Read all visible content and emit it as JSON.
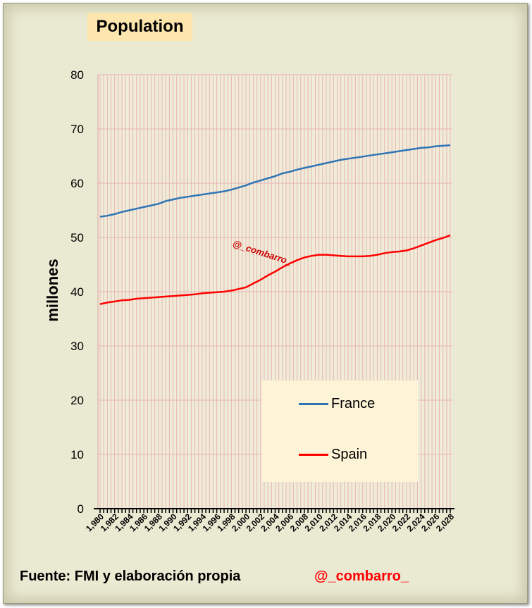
{
  "title": "Population",
  "footer": {
    "source": "Fuente: FMI y elaboración propia",
    "handle": "@_combarro_"
  },
  "watermark": "@_combarro_",
  "colors": {
    "france": "#2e75b6",
    "spain": "#ff0000",
    "grid": "#e9b5b5",
    "title_bg": "#fde6ad",
    "legend_bg": "#fdf3d6",
    "frame_bg": "#eae9d2"
  },
  "chart_data": {
    "type": "line",
    "title": "Population",
    "ylabel": "millones",
    "xlabel": "",
    "ylim": [
      0,
      80
    ],
    "yticks": [
      0,
      10,
      20,
      30,
      40,
      50,
      60,
      70,
      80
    ],
    "x": [
      1980,
      1981,
      1982,
      1983,
      1984,
      1985,
      1986,
      1987,
      1988,
      1989,
      1990,
      1991,
      1992,
      1993,
      1994,
      1995,
      1996,
      1997,
      1998,
      1999,
      2000,
      2001,
      2002,
      2003,
      2004,
      2005,
      2006,
      2007,
      2008,
      2009,
      2010,
      2011,
      2012,
      2013,
      2014,
      2015,
      2016,
      2017,
      2018,
      2019,
      2020,
      2021,
      2022,
      2023,
      2024,
      2025,
      2026,
      2027,
      2028
    ],
    "xtick_labels": [
      "1,980",
      "1,982",
      "1,984",
      "1,986",
      "1,988",
      "1,990",
      "1,992",
      "1,994",
      "1,996",
      "1,998",
      "2,000",
      "2,002",
      "2,004",
      "2,006",
      "2,008",
      "2,010",
      "2,012",
      "2,014",
      "2,016",
      "2,018",
      "2,020",
      "2,022",
      "2,024",
      "2,026",
      "2,028"
    ],
    "grid": true,
    "legend_position": "bottom-right",
    "series": [
      {
        "name": "France",
        "values": [
          53.8,
          54.0,
          54.3,
          54.7,
          55.0,
          55.3,
          55.6,
          55.9,
          56.2,
          56.7,
          57.0,
          57.3,
          57.5,
          57.7,
          57.9,
          58.1,
          58.3,
          58.5,
          58.8,
          59.2,
          59.6,
          60.1,
          60.5,
          60.9,
          61.3,
          61.8,
          62.1,
          62.5,
          62.8,
          63.1,
          63.4,
          63.7,
          64.0,
          64.3,
          64.5,
          64.7,
          64.9,
          65.1,
          65.3,
          65.5,
          65.7,
          65.9,
          66.1,
          66.3,
          66.5,
          66.6,
          66.8,
          66.9,
          67.0
        ]
      },
      {
        "name": "Spain",
        "values": [
          37.7,
          38.0,
          38.2,
          38.4,
          38.5,
          38.7,
          38.8,
          38.9,
          39.0,
          39.1,
          39.2,
          39.3,
          39.4,
          39.5,
          39.7,
          39.8,
          39.9,
          40.0,
          40.2,
          40.5,
          40.8,
          41.5,
          42.2,
          43.0,
          43.7,
          44.5,
          45.2,
          45.8,
          46.3,
          46.6,
          46.8,
          46.8,
          46.7,
          46.6,
          46.5,
          46.5,
          46.5,
          46.6,
          46.8,
          47.1,
          47.3,
          47.4,
          47.6,
          48.0,
          48.5,
          49.0,
          49.5,
          49.9,
          50.4
        ]
      }
    ]
  }
}
